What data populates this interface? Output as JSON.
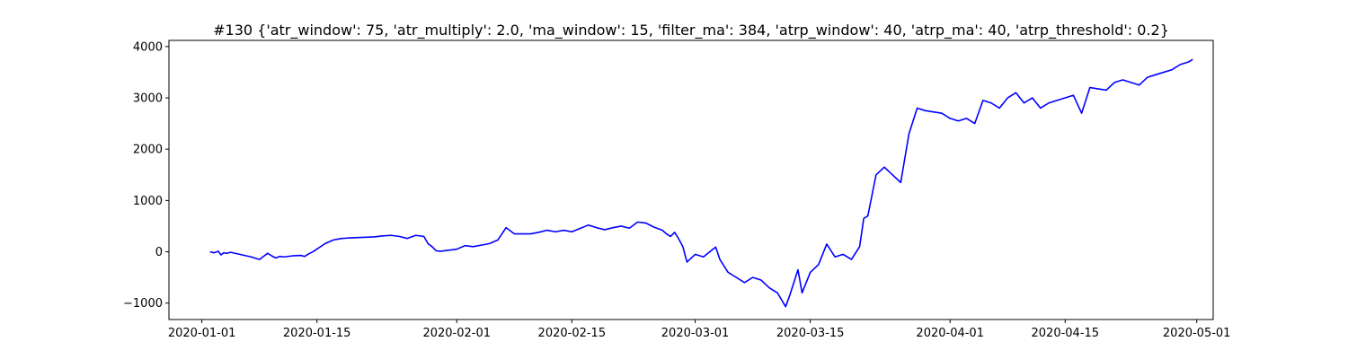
{
  "chart_data": {
    "type": "line",
    "title": "#130 {'atr_window': 75, 'atr_multiply': 2.0, 'ma_window': 15, 'filter_ma': 384, 'atrp_window': 40, 'atrp_ma': 40, 'atrp_threshold': 0.2}",
    "xlabel": "",
    "ylabel": "",
    "xlim": [
      "2019-12-28",
      "2020-05-03"
    ],
    "ylim": [
      -1320,
      4120
    ],
    "grid": false,
    "line_color": "#0000ff",
    "x_ticks": [
      "2020-01-01",
      "2020-01-15",
      "2020-02-01",
      "2020-02-15",
      "2020-03-01",
      "2020-03-15",
      "2020-04-01",
      "2020-04-15",
      "2020-05-01"
    ],
    "y_ticks": [
      -1000,
      0,
      1000,
      2000,
      3000,
      4000
    ],
    "series": [
      {
        "x": [
          "2020-01-02",
          "2020-01-02",
          "2020-01-03",
          "2020-01-03",
          "2020-01-03",
          "2020-01-04",
          "2020-01-04",
          "2020-01-07",
          "2020-01-08",
          "2020-01-09",
          "2020-01-09",
          "2020-01-10",
          "2020-01-10",
          "2020-01-11",
          "2020-01-12",
          "2020-01-13",
          "2020-01-13",
          "2020-01-14",
          "2020-01-14",
          "2020-01-16",
          "2020-01-17",
          "2020-01-18",
          "2020-01-19",
          "2020-01-22",
          "2020-01-23",
          "2020-01-24",
          "2020-01-25",
          "2020-01-26",
          "2020-01-27",
          "2020-01-28",
          "2020-01-28",
          "2020-01-29",
          "2020-01-29",
          "2020-01-30",
          "2020-02-01",
          "2020-02-02",
          "2020-02-03",
          "2020-02-04",
          "2020-02-05",
          "2020-02-06",
          "2020-02-07",
          "2020-02-08",
          "2020-02-10",
          "2020-02-11",
          "2020-02-12",
          "2020-02-13",
          "2020-02-14",
          "2020-02-15",
          "2020-02-17",
          "2020-02-18",
          "2020-02-19",
          "2020-02-20",
          "2020-02-21",
          "2020-02-22",
          "2020-02-23",
          "2020-02-24",
          "2020-02-25",
          "2020-02-26",
          "2020-02-26",
          "2020-02-27",
          "2020-02-27",
          "2020-02-28",
          "2020-02-28",
          "2020-02-29",
          "2020-03-01",
          "2020-03-02",
          "2020-03-03",
          "2020-03-03",
          "2020-03-04",
          "2020-03-05",
          "2020-03-06",
          "2020-03-07",
          "2020-03-08",
          "2020-03-09",
          "2020-03-10",
          "2020-03-11",
          "2020-03-12",
          "2020-03-12",
          "2020-03-13",
          "2020-03-13",
          "2020-03-14",
          "2020-03-15",
          "2020-03-16",
          "2020-03-17",
          "2020-03-18",
          "2020-03-19",
          "2020-03-20",
          "2020-03-21",
          "2020-03-21",
          "2020-03-22",
          "2020-03-23",
          "2020-03-24",
          "2020-03-25",
          "2020-03-26",
          "2020-03-27",
          "2020-03-28",
          "2020-03-29",
          "2020-03-31",
          "2020-04-01",
          "2020-04-02",
          "2020-04-03",
          "2020-04-04",
          "2020-04-05",
          "2020-04-06",
          "2020-04-07",
          "2020-04-08",
          "2020-04-09",
          "2020-04-10",
          "2020-04-11",
          "2020-04-12",
          "2020-04-13",
          "2020-04-14",
          "2020-04-15",
          "2020-04-16",
          "2020-04-17",
          "2020-04-18",
          "2020-04-20",
          "2020-04-21",
          "2020-04-22",
          "2020-04-23",
          "2020-04-24",
          "2020-04-25",
          "2020-04-26",
          "2020-04-27",
          "2020-04-28",
          "2020-04-29",
          "2020-04-30",
          "2020-04-30"
        ],
        "y": [
          0,
          -20,
          10,
          -60,
          -20,
          -30,
          -10,
          -100,
          -150,
          -30,
          -80,
          -120,
          -90,
          -100,
          -80,
          -70,
          -90,
          -40,
          0,
          160,
          230,
          260,
          270,
          290,
          310,
          320,
          300,
          260,
          320,
          300,
          160,
          100,
          20,
          10,
          50,
          120,
          100,
          130,
          160,
          230,
          470,
          350,
          350,
          380,
          420,
          390,
          420,
          390,
          520,
          470,
          430,
          470,
          500,
          460,
          580,
          560,
          480,
          420,
          350,
          300,
          380,
          250,
          100,
          -200,
          -50,
          -100,
          30,
          90,
          -150,
          -400,
          -500,
          -600,
          -500,
          -550,
          -700,
          -800,
          -1070,
          -850,
          -600,
          -350,
          -800,
          -400,
          -250,
          150,
          -100,
          -50,
          -150,
          100,
          650,
          700,
          1500,
          1650,
          1500,
          1350,
          2300,
          2800,
          2750,
          2700,
          2600,
          2550,
          2600,
          2500,
          2950,
          2900,
          2800,
          3000,
          3100,
          2900,
          3000,
          2800,
          2900,
          2950,
          3000,
          3050,
          2700,
          3200,
          3150,
          3300,
          3350,
          3300,
          3250,
          3400,
          3450,
          3500,
          3550,
          3650,
          3700,
          3750
        ]
      }
    ]
  }
}
